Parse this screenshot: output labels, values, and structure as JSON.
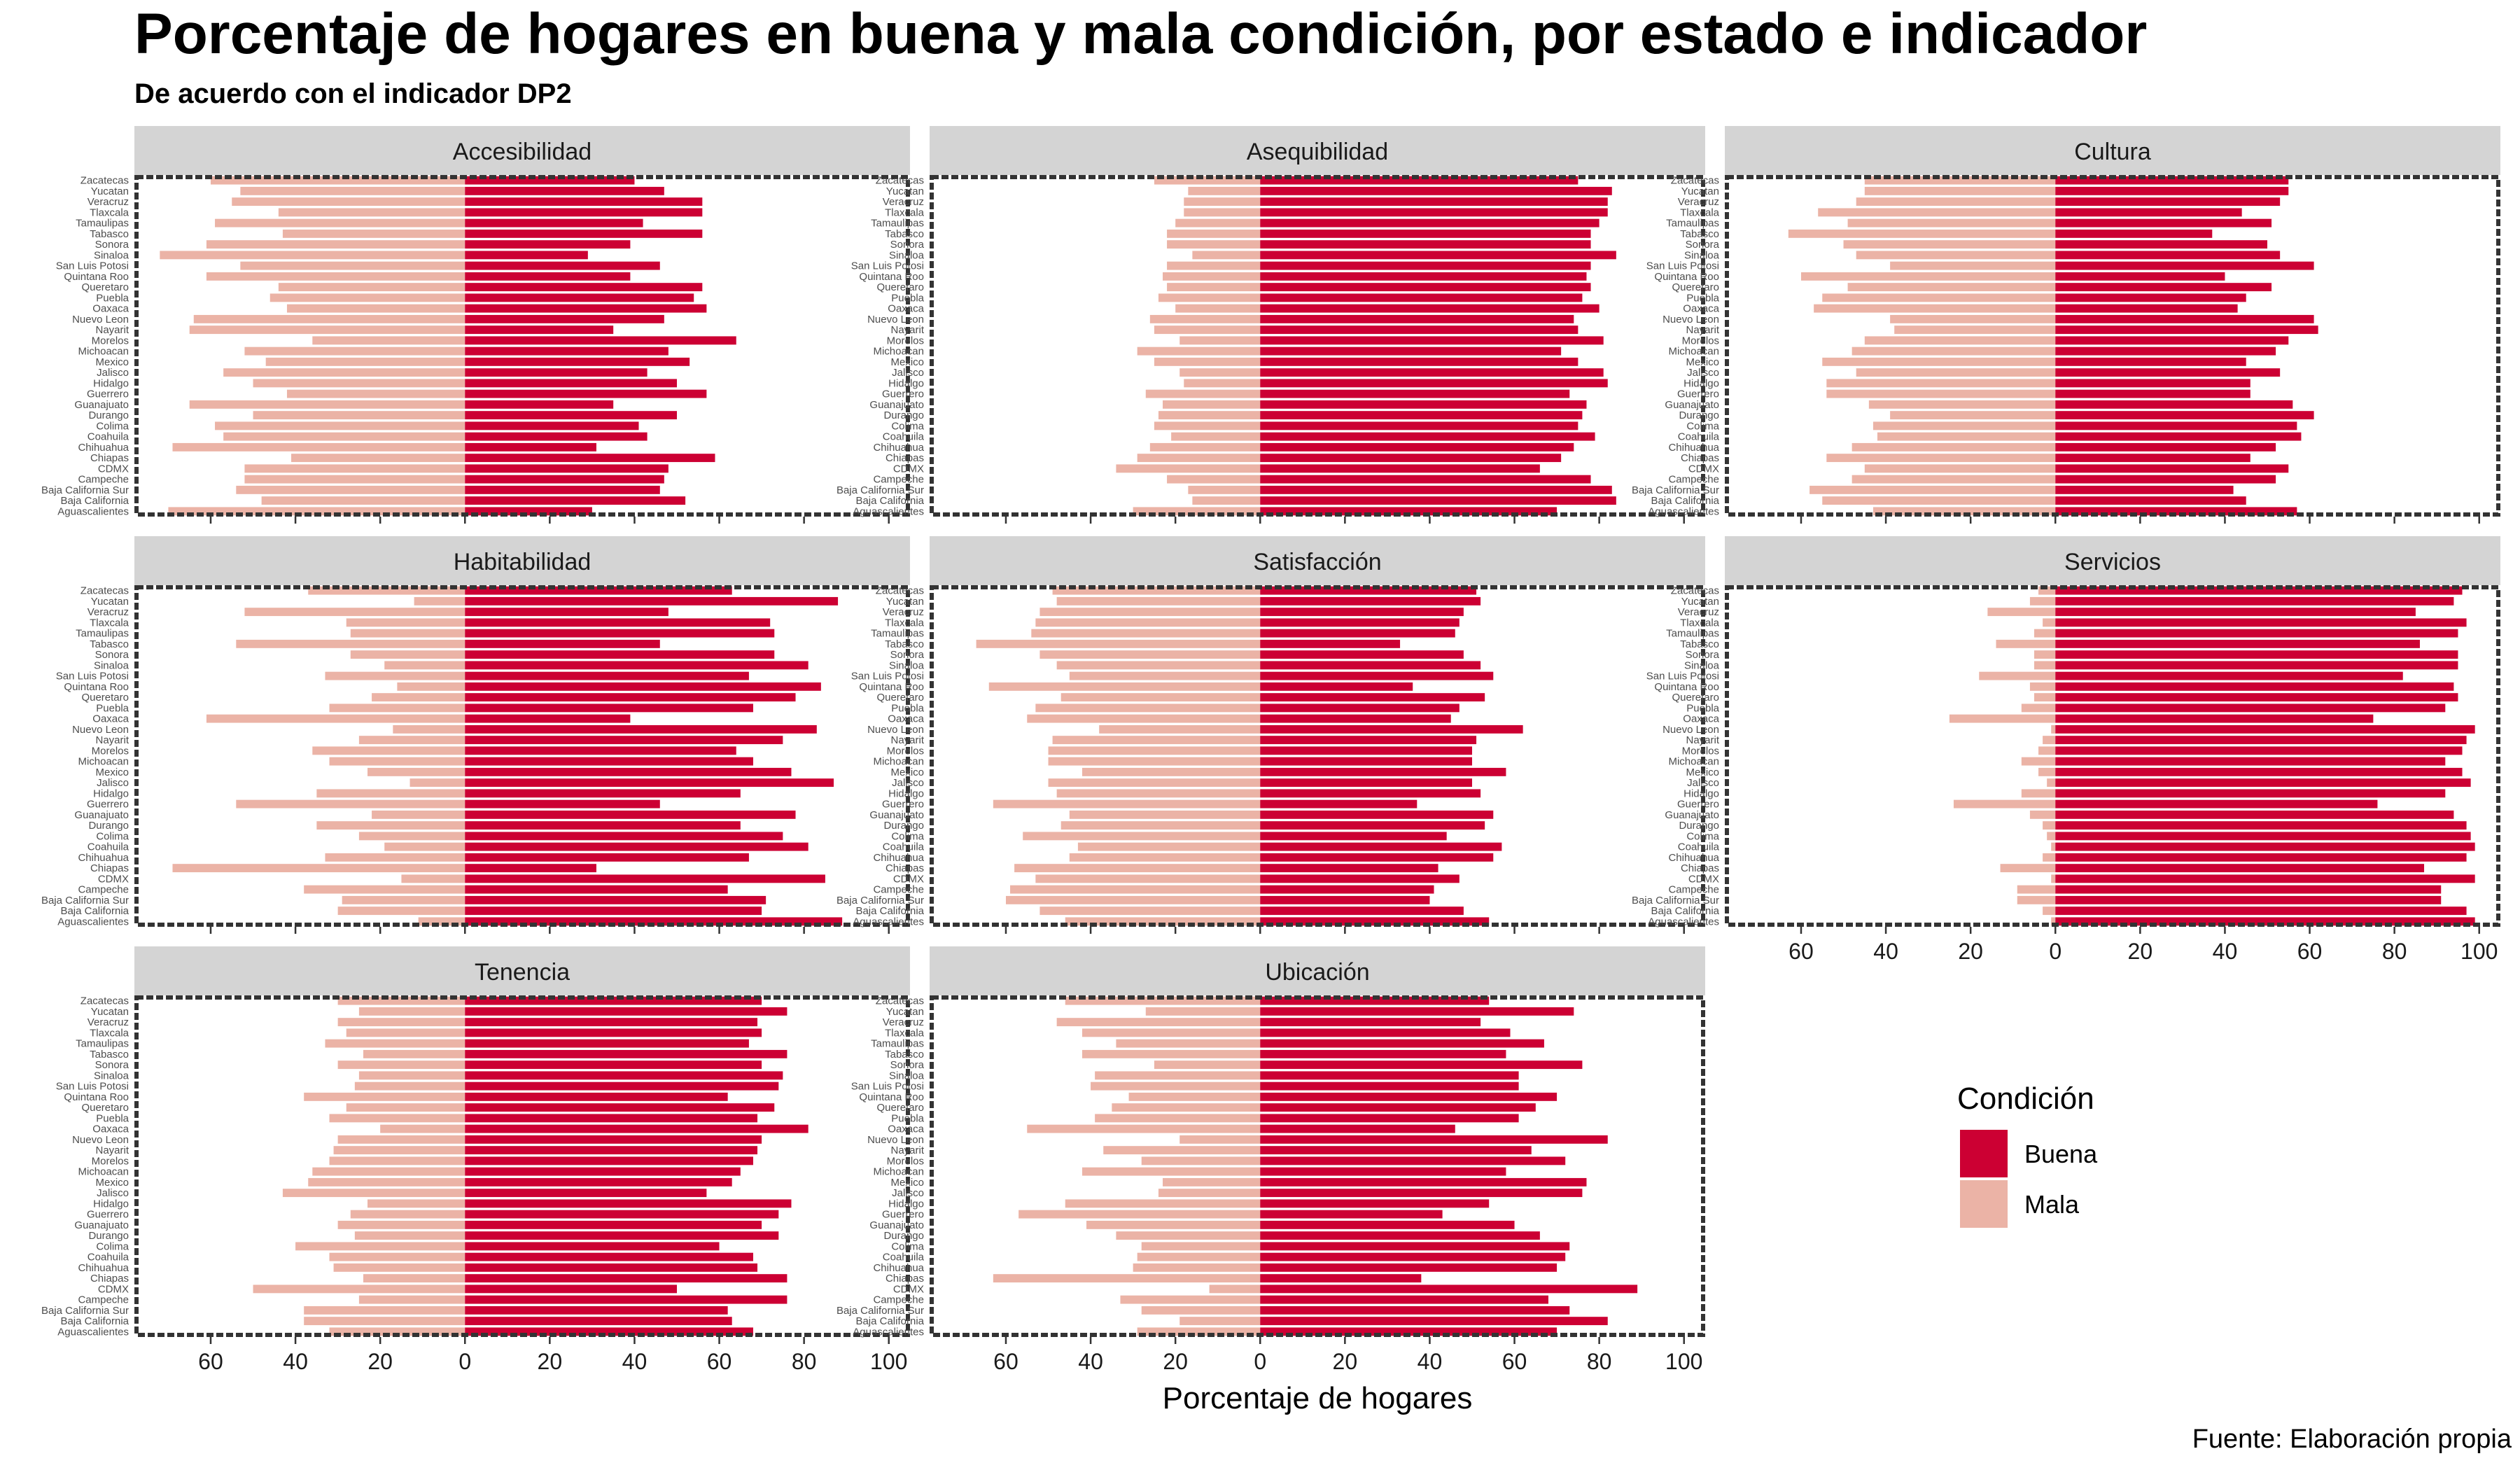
{
  "title": "Porcentaje de hogares en buena y mala condición, por estado e indicador",
  "subtitle": "De acuerdo con el indicador DP2",
  "caption": "Fuente: Elaboración propia",
  "chart_data": {
    "type": "bar",
    "orientation": "horizontal-diverging",
    "xlabel": "Porcentaje de hogares",
    "xlim": [
      -78,
      105
    ],
    "x_ticks": [
      {
        "value": -60,
        "label": "60"
      },
      {
        "value": -40,
        "label": "40"
      },
      {
        "value": -20,
        "label": "20"
      },
      {
        "value": 0,
        "label": "0"
      },
      {
        "value": 20,
        "label": "20"
      },
      {
        "value": 40,
        "label": "40"
      },
      {
        "value": 60,
        "label": "60"
      },
      {
        "value": 80,
        "label": "80"
      },
      {
        "value": 100,
        "label": "100"
      }
    ],
    "categories": [
      "Zacatecas",
      "Yucatan",
      "Veracruz",
      "Tlaxcala",
      "Tamaulipas",
      "Tabasco",
      "Sonora",
      "Sinaloa",
      "San Luis Potosi",
      "Quintana Roo",
      "Queretaro",
      "Puebla",
      "Oaxaca",
      "Nuevo Leon",
      "Nayarit",
      "Morelos",
      "Michoacan",
      "Mexico",
      "Jalisco",
      "Hidalgo",
      "Guerrero",
      "Guanajuato",
      "Durango",
      "Colima",
      "Coahuila",
      "Chihuahua",
      "Chiapas",
      "CDMX",
      "Campeche",
      "Baja California Sur",
      "Baja California",
      "Aguascalientes"
    ],
    "legend": {
      "title": "Condición",
      "position": "bottom-right",
      "entries": [
        {
          "label": "Buena",
          "color": "#cc0033"
        },
        {
          "label": "Mala",
          "color": "#ebb3a6"
        }
      ]
    },
    "colors": {
      "buena": "#cc0033",
      "mala": "#ebb3a6",
      "strip": "#d4d4d4",
      "frame": "#333333"
    },
    "panels": [
      {
        "name": "Accesibilidad",
        "buena": [
          40,
          47,
          56,
          56,
          42,
          56,
          39,
          29,
          46,
          39,
          56,
          54,
          57,
          47,
          35,
          64,
          48,
          53,
          43,
          50,
          57,
          35,
          50,
          41,
          43,
          31,
          59,
          48,
          47,
          46,
          52,
          30
        ],
        "mala": [
          60,
          53,
          55,
          44,
          59,
          43,
          61,
          72,
          53,
          61,
          44,
          46,
          42,
          64,
          65,
          36,
          52,
          47,
          57,
          50,
          42,
          65,
          50,
          59,
          57,
          69,
          41,
          52,
          52,
          54,
          48,
          70
        ]
      },
      {
        "name": "Asequibilidad",
        "buena": [
          75,
          83,
          82,
          82,
          80,
          78,
          78,
          84,
          78,
          77,
          78,
          76,
          80,
          74,
          75,
          81,
          71,
          75,
          81,
          82,
          73,
          77,
          76,
          75,
          79,
          74,
          71,
          66,
          78,
          83,
          84,
          70
        ],
        "mala": [
          25,
          17,
          18,
          18,
          20,
          22,
          22,
          16,
          22,
          23,
          22,
          24,
          20,
          26,
          25,
          19,
          29,
          25,
          19,
          18,
          27,
          23,
          24,
          25,
          21,
          26,
          29,
          34,
          22,
          17,
          16,
          30
        ]
      },
      {
        "name": "Cultura",
        "buena": [
          55,
          55,
          53,
          44,
          51,
          37,
          50,
          53,
          61,
          40,
          51,
          45,
          43,
          61,
          62,
          55,
          52,
          45,
          53,
          46,
          46,
          56,
          61,
          57,
          58,
          52,
          46,
          55,
          52,
          42,
          45,
          57
        ],
        "mala": [
          45,
          45,
          47,
          56,
          49,
          63,
          50,
          47,
          39,
          60,
          49,
          55,
          57,
          39,
          38,
          45,
          48,
          55,
          47,
          54,
          54,
          44,
          39,
          43,
          42,
          48,
          54,
          45,
          48,
          58,
          55,
          43
        ]
      },
      {
        "name": "Habitabilidad",
        "buena": [
          63,
          88,
          48,
          72,
          73,
          46,
          73,
          81,
          67,
          84,
          78,
          68,
          39,
          83,
          75,
          64,
          68,
          77,
          87,
          65,
          46,
          78,
          65,
          75,
          81,
          67,
          31,
          85,
          62,
          71,
          70,
          89
        ],
        "mala": [
          37,
          12,
          52,
          28,
          27,
          54,
          27,
          19,
          33,
          16,
          22,
          32,
          61,
          17,
          25,
          36,
          32,
          23,
          13,
          35,
          54,
          22,
          35,
          25,
          19,
          33,
          69,
          15,
          38,
          29,
          30,
          11
        ]
      },
      {
        "name": "Satisfacción",
        "buena": [
          51,
          52,
          48,
          47,
          46,
          33,
          48,
          52,
          55,
          36,
          53,
          47,
          45,
          62,
          51,
          50,
          50,
          58,
          50,
          52,
          37,
          55,
          53,
          44,
          57,
          55,
          42,
          47,
          41,
          40,
          48,
          54
        ],
        "mala": [
          49,
          48,
          52,
          53,
          54,
          67,
          52,
          48,
          45,
          64,
          47,
          53,
          55,
          38,
          49,
          50,
          50,
          42,
          50,
          48,
          63,
          45,
          47,
          56,
          43,
          45,
          58,
          53,
          59,
          60,
          52,
          46
        ]
      },
      {
        "name": "Servicios",
        "buena": [
          96,
          94,
          85,
          97,
          95,
          86,
          95,
          95,
          82,
          94,
          95,
          92,
          75,
          99,
          97,
          96,
          92,
          96,
          98,
          92,
          76,
          94,
          97,
          98,
          99,
          97,
          87,
          99,
          91,
          91,
          97,
          99
        ],
        "mala": [
          4,
          6,
          16,
          3,
          5,
          14,
          5,
          5,
          18,
          6,
          5,
          8,
          25,
          1,
          3,
          4,
          8,
          4,
          2,
          8,
          24,
          6,
          3,
          2,
          1,
          3,
          13,
          1,
          9,
          9,
          3,
          1
        ]
      },
      {
        "name": "Tenencia",
        "buena": [
          70,
          76,
          69,
          70,
          67,
          76,
          70,
          75,
          74,
          62,
          73,
          69,
          81,
          70,
          69,
          68,
          65,
          63,
          57,
          77,
          74,
          70,
          74,
          60,
          68,
          69,
          76,
          50,
          76,
          62,
          63,
          68
        ],
        "mala": [
          30,
          25,
          30,
          28,
          33,
          24,
          30,
          25,
          26,
          38,
          28,
          32,
          20,
          30,
          31,
          32,
          36,
          37,
          43,
          23,
          27,
          30,
          26,
          40,
          32,
          31,
          24,
          50,
          25,
          38,
          38,
          32
        ]
      },
      {
        "name": "Ubicación",
        "buena": [
          54,
          74,
          52,
          59,
          67,
          58,
          76,
          61,
          61,
          70,
          65,
          61,
          46,
          82,
          64,
          72,
          58,
          77,
          76,
          54,
          43,
          60,
          66,
          73,
          72,
          70,
          38,
          89,
          68,
          73,
          82,
          70
        ],
        "mala": [
          46,
          27,
          48,
          42,
          34,
          42,
          25,
          39,
          40,
          31,
          35,
          39,
          55,
          19,
          37,
          28,
          42,
          23,
          24,
          46,
          57,
          41,
          34,
          28,
          29,
          30,
          63,
          12,
          33,
          28,
          19,
          29
        ]
      }
    ]
  }
}
